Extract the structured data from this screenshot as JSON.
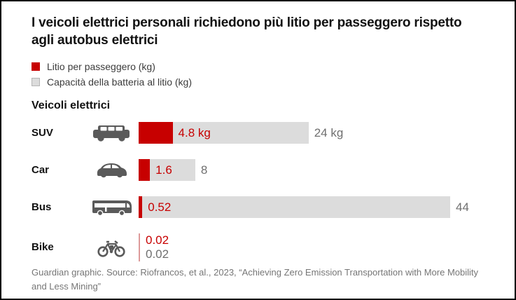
{
  "title": "I veicoli elettrici personali richiedono più litio per passeggero rispetto agli autobus elettrici",
  "legend": [
    {
      "label": "Litio per passeggero  (kg)",
      "color": "#c70000"
    },
    {
      "label": "Capacità della batteria al litio  (kg)",
      "color": "#dcdcdc"
    }
  ],
  "section_label": "Veicoli elettrici",
  "footer": "Guardian graphic. Source: Riofrancos, et al., 2023, “Achieving Zero Emission Transportation with More Mobility and Less Mining”",
  "colors": {
    "lithium_red": "#c70000",
    "capacity_gray": "#dcdcdc",
    "value_text_gray": "#6f6f6f",
    "text_dark": "#121212"
  },
  "chart_data": {
    "type": "bar",
    "orientation": "horizontal",
    "categories": [
      "SUV",
      "Car",
      "Bus",
      "Bike"
    ],
    "icons": [
      "suv-icon",
      "car-icon",
      "bus-icon",
      "bike-icon"
    ],
    "series": [
      {
        "name": "Litio per passeggero (kg)",
        "color": "#c70000",
        "values": [
          4.8,
          1.6,
          0.52,
          0.02
        ],
        "labels": [
          "4.8 kg",
          "1.6",
          "0.52",
          "0.02"
        ]
      },
      {
        "name": "Capacità della batteria al litio (kg)",
        "color": "#dcdcdc",
        "values": [
          24,
          8,
          44,
          0.02
        ],
        "labels": [
          "24 kg",
          "8",
          "44",
          "0.02"
        ]
      }
    ],
    "xlim": [
      0,
      44
    ],
    "grid": false,
    "legend_position": "top-left"
  }
}
